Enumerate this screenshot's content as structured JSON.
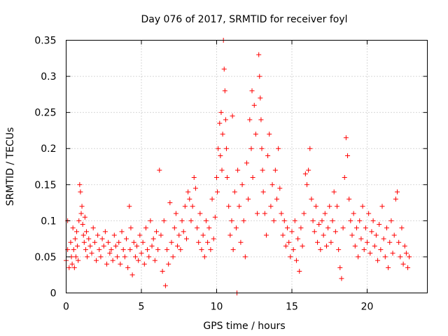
{
  "chart_data": {
    "type": "scatter",
    "title": "Day 076 of 2017, SRMTID for receiver foyl",
    "xlabel": "GPS time / hours",
    "ylabel": "SRMTID / TECUs",
    "xlim": [
      0,
      24
    ],
    "ylim": [
      0,
      0.35
    ],
    "x_ticks": [
      0,
      5,
      10,
      15,
      20
    ],
    "x_tick_labels": [
      "0",
      "5",
      "10",
      "15",
      "20"
    ],
    "y_ticks": [
      0,
      0.05,
      0.1,
      0.15,
      0.2,
      0.25,
      0.3,
      0.35
    ],
    "y_tick_labels": [
      "0",
      "0.05",
      "0.1",
      "0.15",
      "0.2",
      "0.25",
      "0.3",
      "0.35"
    ],
    "grid": true,
    "marker": "plus",
    "point_color": "#ff0000",
    "series": [
      {
        "name": "SRMTID",
        "points": [
          [
            0.0,
            0.045
          ],
          [
            0.1,
            0.1
          ],
          [
            0.1,
            0.06
          ],
          [
            0.2,
            0.035
          ],
          [
            0.3,
            0.07
          ],
          [
            0.35,
            0.05
          ],
          [
            0.4,
            0.04
          ],
          [
            0.45,
            0.09
          ],
          [
            0.5,
            0.06
          ],
          [
            0.55,
            0.035
          ],
          [
            0.6,
            0.075
          ],
          [
            0.65,
            0.05
          ],
          [
            0.7,
            0.085
          ],
          [
            0.75,
            0.065
          ],
          [
            0.8,
            0.045
          ],
          [
            0.85,
            0.1
          ],
          [
            0.9,
            0.15
          ],
          [
            0.95,
            0.14
          ],
          [
            1.0,
            0.11
          ],
          [
            1.05,
            0.12
          ],
          [
            1.1,
            0.095
          ],
          [
            1.15,
            0.08
          ],
          [
            1.2,
            0.07
          ],
          [
            1.25,
            0.105
          ],
          [
            1.3,
            0.06
          ],
          [
            1.35,
            0.085
          ],
          [
            1.4,
            0.05
          ],
          [
            1.5,
            0.075
          ],
          [
            1.6,
            0.065
          ],
          [
            1.7,
            0.055
          ],
          [
            1.8,
            0.09
          ],
          [
            1.9,
            0.07
          ],
          [
            2.0,
            0.045
          ],
          [
            2.1,
            0.08
          ],
          [
            2.2,
            0.06
          ],
          [
            2.3,
            0.05
          ],
          [
            2.4,
            0.075
          ],
          [
            2.5,
            0.065
          ],
          [
            2.6,
            0.085
          ],
          [
            2.7,
            0.04
          ],
          [
            2.8,
            0.07
          ],
          [
            2.9,
            0.055
          ],
          [
            3.0,
            0.06
          ],
          [
            3.1,
            0.045
          ],
          [
            3.2,
            0.08
          ],
          [
            3.3,
            0.065
          ],
          [
            3.4,
            0.05
          ],
          [
            3.5,
            0.07
          ],
          [
            3.6,
            0.04
          ],
          [
            3.7,
            0.085
          ],
          [
            3.8,
            0.06
          ],
          [
            3.9,
            0.05
          ],
          [
            4.0,
            0.075
          ],
          [
            4.1,
            0.035
          ],
          [
            4.2,
            0.12
          ],
          [
            4.25,
            0.06
          ],
          [
            4.3,
            0.09
          ],
          [
            4.4,
            0.025
          ],
          [
            4.5,
            0.07
          ],
          [
            4.6,
            0.05
          ],
          [
            4.7,
            0.065
          ],
          [
            4.8,
            0.045
          ],
          [
            4.9,
            0.08
          ],
          [
            5.0,
            0.055
          ],
          [
            5.1,
            0.07
          ],
          [
            5.2,
            0.04
          ],
          [
            5.3,
            0.09
          ],
          [
            5.4,
            0.06
          ],
          [
            5.5,
            0.05
          ],
          [
            5.6,
            0.1
          ],
          [
            5.7,
            0.065
          ],
          [
            5.8,
            0.075
          ],
          [
            5.9,
            0.045
          ],
          [
            6.0,
            0.085
          ],
          [
            6.1,
            0.06
          ],
          [
            6.2,
            0.17
          ],
          [
            6.3,
            0.08
          ],
          [
            6.4,
            0.03
          ],
          [
            6.5,
            0.1
          ],
          [
            6.6,
            0.01
          ],
          [
            6.7,
            0.06
          ],
          [
            6.8,
            0.04
          ],
          [
            6.9,
            0.125
          ],
          [
            7.0,
            0.07
          ],
          [
            7.1,
            0.05
          ],
          [
            7.2,
            0.09
          ],
          [
            7.3,
            0.11
          ],
          [
            7.4,
            0.065
          ],
          [
            7.5,
            0.08
          ],
          [
            7.6,
            0.06
          ],
          [
            7.7,
            0.1
          ],
          [
            7.8,
            0.085
          ],
          [
            7.9,
            0.12
          ],
          [
            8.0,
            0.075
          ],
          [
            8.1,
            0.14
          ],
          [
            8.2,
            0.13
          ],
          [
            8.3,
            0.1
          ],
          [
            8.4,
            0.12
          ],
          [
            8.5,
            0.16
          ],
          [
            8.6,
            0.145
          ],
          [
            8.7,
            0.09
          ],
          [
            8.8,
            0.07
          ],
          [
            8.9,
            0.11
          ],
          [
            9.0,
            0.06
          ],
          [
            9.1,
            0.08
          ],
          [
            9.2,
            0.05
          ],
          [
            9.3,
            0.1
          ],
          [
            9.4,
            0.07
          ],
          [
            9.5,
            0.09
          ],
          [
            9.6,
            0.06
          ],
          [
            9.7,
            0.13
          ],
          [
            9.8,
            0.075
          ],
          [
            9.9,
            0.105
          ],
          [
            10.0,
            0.16
          ],
          [
            10.05,
            0.14
          ],
          [
            10.1,
            0.2
          ],
          [
            10.2,
            0.235
          ],
          [
            10.25,
            0.19
          ],
          [
            10.3,
            0.25
          ],
          [
            10.35,
            0.17
          ],
          [
            10.4,
            0.22
          ],
          [
            10.45,
            0.35
          ],
          [
            10.5,
            0.31
          ],
          [
            10.55,
            0.28
          ],
          [
            10.6,
            0.24
          ],
          [
            10.65,
            0.2
          ],
          [
            10.7,
            0.16
          ],
          [
            10.8,
            0.12
          ],
          [
            10.9,
            0.08
          ],
          [
            11.0,
            0.1
          ],
          [
            11.05,
            0.245
          ],
          [
            11.1,
            0.06
          ],
          [
            11.2,
            0.14
          ],
          [
            11.3,
            0.09
          ],
          [
            11.35,
            0.0
          ],
          [
            11.4,
            0.17
          ],
          [
            11.5,
            0.12
          ],
          [
            11.6,
            0.07
          ],
          [
            11.7,
            0.15
          ],
          [
            11.8,
            0.1
          ],
          [
            11.9,
            0.05
          ],
          [
            12.0,
            0.18
          ],
          [
            12.1,
            0.13
          ],
          [
            12.2,
            0.24
          ],
          [
            12.3,
            0.2
          ],
          [
            12.35,
            0.28
          ],
          [
            12.4,
            0.16
          ],
          [
            12.5,
            0.26
          ],
          [
            12.6,
            0.22
          ],
          [
            12.7,
            0.11
          ],
          [
            12.8,
            0.33
          ],
          [
            12.85,
            0.3
          ],
          [
            12.9,
            0.27
          ],
          [
            12.95,
            0.24
          ],
          [
            13.0,
            0.2
          ],
          [
            13.05,
            0.17
          ],
          [
            13.1,
            0.14
          ],
          [
            13.2,
            0.11
          ],
          [
            13.3,
            0.08
          ],
          [
            13.4,
            0.19
          ],
          [
            13.5,
            0.22
          ],
          [
            13.6,
            0.12
          ],
          [
            13.7,
            0.15
          ],
          [
            13.8,
            0.1
          ],
          [
            13.9,
            0.17
          ],
          [
            14.0,
            0.13
          ],
          [
            14.1,
            0.2
          ],
          [
            14.2,
            0.145
          ],
          [
            14.3,
            0.11
          ],
          [
            14.4,
            0.08
          ],
          [
            14.5,
            0.1
          ],
          [
            14.6,
            0.065
          ],
          [
            14.7,
            0.09
          ],
          [
            14.8,
            0.07
          ],
          [
            14.9,
            0.05
          ],
          [
            15.0,
            0.085
          ],
          [
            15.1,
            0.06
          ],
          [
            15.2,
            0.1
          ],
          [
            15.3,
            0.045
          ],
          [
            15.4,
            0.075
          ],
          [
            15.5,
            0.03
          ],
          [
            15.6,
            0.09
          ],
          [
            15.7,
            0.065
          ],
          [
            15.8,
            0.11
          ],
          [
            15.9,
            0.165
          ],
          [
            16.0,
            0.15
          ],
          [
            16.1,
            0.17
          ],
          [
            16.2,
            0.2
          ],
          [
            16.3,
            0.13
          ],
          [
            16.4,
            0.1
          ],
          [
            16.5,
            0.085
          ],
          [
            16.6,
            0.12
          ],
          [
            16.7,
            0.07
          ],
          [
            16.8,
            0.095
          ],
          [
            16.9,
            0.06
          ],
          [
            17.0,
            0.1
          ],
          [
            17.1,
            0.08
          ],
          [
            17.2,
            0.11
          ],
          [
            17.3,
            0.065
          ],
          [
            17.4,
            0.09
          ],
          [
            17.5,
            0.12
          ],
          [
            17.6,
            0.07
          ],
          [
            17.7,
            0.1
          ],
          [
            17.8,
            0.14
          ],
          [
            17.9,
            0.085
          ],
          [
            18.0,
            0.12
          ],
          [
            18.1,
            0.06
          ],
          [
            18.2,
            0.035
          ],
          [
            18.3,
            0.02
          ],
          [
            18.4,
            0.09
          ],
          [
            18.5,
            0.16
          ],
          [
            18.6,
            0.215
          ],
          [
            18.7,
            0.19
          ],
          [
            18.8,
            0.13
          ],
          [
            18.9,
            0.1
          ],
          [
            19.0,
            0.08
          ],
          [
            19.1,
            0.11
          ],
          [
            19.2,
            0.065
          ],
          [
            19.3,
            0.09
          ],
          [
            19.4,
            0.05
          ],
          [
            19.5,
            0.1
          ],
          [
            19.6,
            0.075
          ],
          [
            19.7,
            0.12
          ],
          [
            19.8,
            0.06
          ],
          [
            19.9,
            0.09
          ],
          [
            20.0,
            0.07
          ],
          [
            20.1,
            0.11
          ],
          [
            20.2,
            0.055
          ],
          [
            20.3,
            0.085
          ],
          [
            20.4,
            0.1
          ],
          [
            20.5,
            0.065
          ],
          [
            20.6,
            0.08
          ],
          [
            20.7,
            0.045
          ],
          [
            20.8,
            0.095
          ],
          [
            20.9,
            0.06
          ],
          [
            21.0,
            0.12
          ],
          [
            21.1,
            0.075
          ],
          [
            21.2,
            0.05
          ],
          [
            21.3,
            0.09
          ],
          [
            21.4,
            0.035
          ],
          [
            21.5,
            0.07
          ],
          [
            21.6,
            0.1
          ],
          [
            21.7,
            0.055
          ],
          [
            21.8,
            0.08
          ],
          [
            21.9,
            0.13
          ],
          [
            22.0,
            0.14
          ],
          [
            22.1,
            0.07
          ],
          [
            22.2,
            0.05
          ],
          [
            22.3,
            0.09
          ],
          [
            22.4,
            0.04
          ],
          [
            22.5,
            0.065
          ],
          [
            22.6,
            0.055
          ],
          [
            22.7,
            0.035
          ],
          [
            22.8,
            0.05
          ]
        ]
      }
    ]
  }
}
